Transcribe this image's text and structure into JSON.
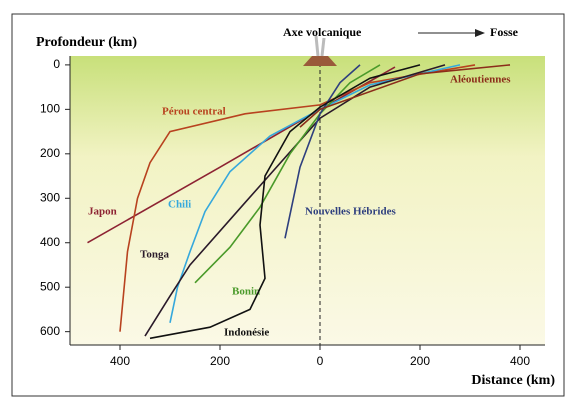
{
  "chart_data": {
    "type": "line",
    "y_label": "Profondeur (km)",
    "x_label": "Distance (km)",
    "annotations": [
      "Axe  volcanique",
      "Fosse"
    ],
    "xlim": [
      -500,
      450
    ],
    "ylim": [
      630,
      -20
    ],
    "xticks": [
      {
        "value": -400,
        "label": "400"
      },
      {
        "value": -200,
        "label": "200"
      },
      0,
      200,
      400
    ],
    "yticks": [
      0,
      100,
      200,
      300,
      400,
      500,
      600
    ],
    "series": [
      {
        "name": "Japon",
        "color": "#8d2333",
        "x": [
          -465,
          -200,
          0,
          150
        ],
        "values": [
          400,
          230,
          100,
          5
        ]
      },
      {
        "name": "Pérou central",
        "color": "#b8421f",
        "x": [
          310,
          100,
          0,
          -150,
          -300,
          -340,
          -365,
          -385,
          -400
        ],
        "values": [
          0,
          40,
          90,
          110,
          150,
          220,
          300,
          420,
          600
        ]
      },
      {
        "name": "Chili",
        "color": "#35a8dc",
        "x": [
          280,
          100,
          0,
          -100,
          -180,
          -230,
          -260,
          -285,
          -300
        ],
        "values": [
          0,
          45,
          100,
          160,
          240,
          330,
          420,
          500,
          580
        ]
      },
      {
        "name": "Tonga",
        "color": "#2a1a2a",
        "x": [
          -350,
          -300,
          -260,
          -150,
          0,
          100,
          250
        ],
        "values": [
          610,
          520,
          450,
          310,
          120,
          50,
          0
        ]
      },
      {
        "name": "Bonin",
        "color": "#4a9a2a",
        "x": [
          -250,
          -180,
          -120,
          -60,
          0,
          60,
          120
        ],
        "values": [
          490,
          410,
          320,
          200,
          110,
          40,
          0
        ]
      },
      {
        "name": "Nouvelles Hébrides",
        "color": "#2e3f7e",
        "x": [
          -70,
          -40,
          0,
          40,
          80
        ],
        "values": [
          390,
          230,
          110,
          40,
          0
        ]
      },
      {
        "name": "Indonésie",
        "color": "#111111",
        "x": [
          -340,
          -220,
          -140,
          -110,
          -120,
          -110,
          -60,
          0,
          100,
          200
        ],
        "values": [
          615,
          590,
          550,
          480,
          360,
          250,
          150,
          95,
          30,
          0
        ]
      },
      {
        "name": "Aléoutiennes",
        "color": "#8b2d1a",
        "x": [
          380,
          200,
          0,
          -40
        ],
        "values": [
          0,
          20,
          100,
          140
        ]
      }
    ]
  }
}
